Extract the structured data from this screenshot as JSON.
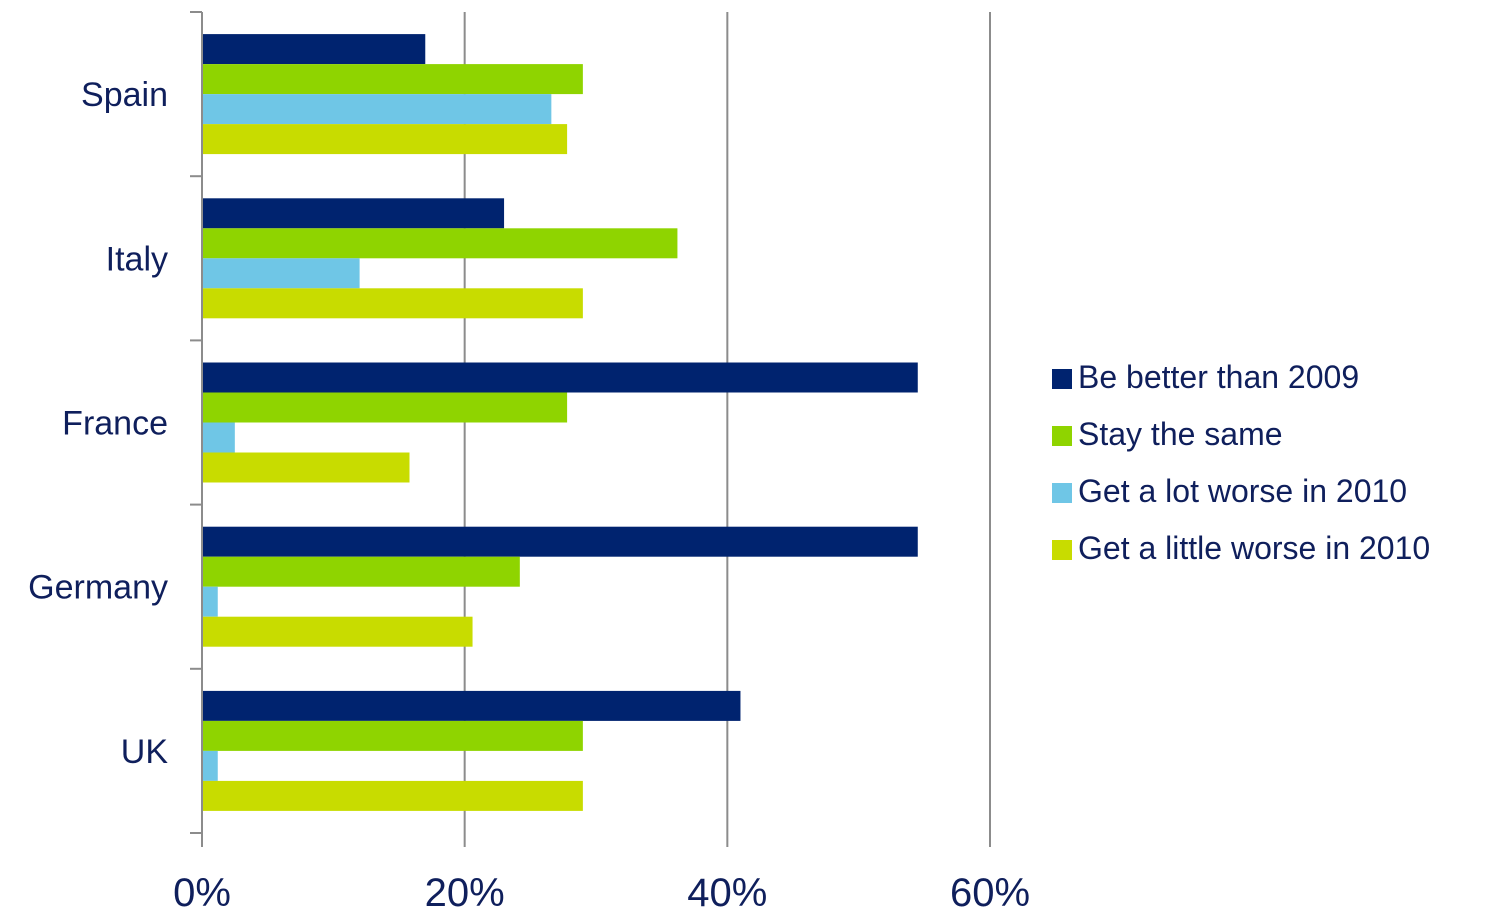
{
  "chart_data": {
    "type": "bar",
    "orientation": "horizontal",
    "categories": [
      "Spain",
      "Italy",
      "France",
      "Germany",
      "UK"
    ],
    "series": [
      {
        "name": "Be better than 2009",
        "color": "#00236f",
        "values": [
          17,
          23,
          54.5,
          54.5,
          41
        ]
      },
      {
        "name": "Stay the same",
        "color": "#8fd400",
        "values": [
          29,
          36.2,
          27.8,
          24.2,
          29
        ]
      },
      {
        "name": "Get a lot worse in 2010",
        "color": "#6fc6e6",
        "values": [
          26.6,
          12,
          2.5,
          1.2,
          1.2
        ]
      },
      {
        "name": "Get a little worse in 2010",
        "color": "#c8dc00",
        "values": [
          27.8,
          29,
          15.8,
          20.6,
          29
        ]
      }
    ],
    "x_ticks": [
      "0%",
      "20%",
      "40%",
      "60%"
    ],
    "xlim": [
      0,
      60
    ],
    "grid": true,
    "legend_position": "right",
    "title": "",
    "xlabel": "",
    "ylabel": ""
  }
}
